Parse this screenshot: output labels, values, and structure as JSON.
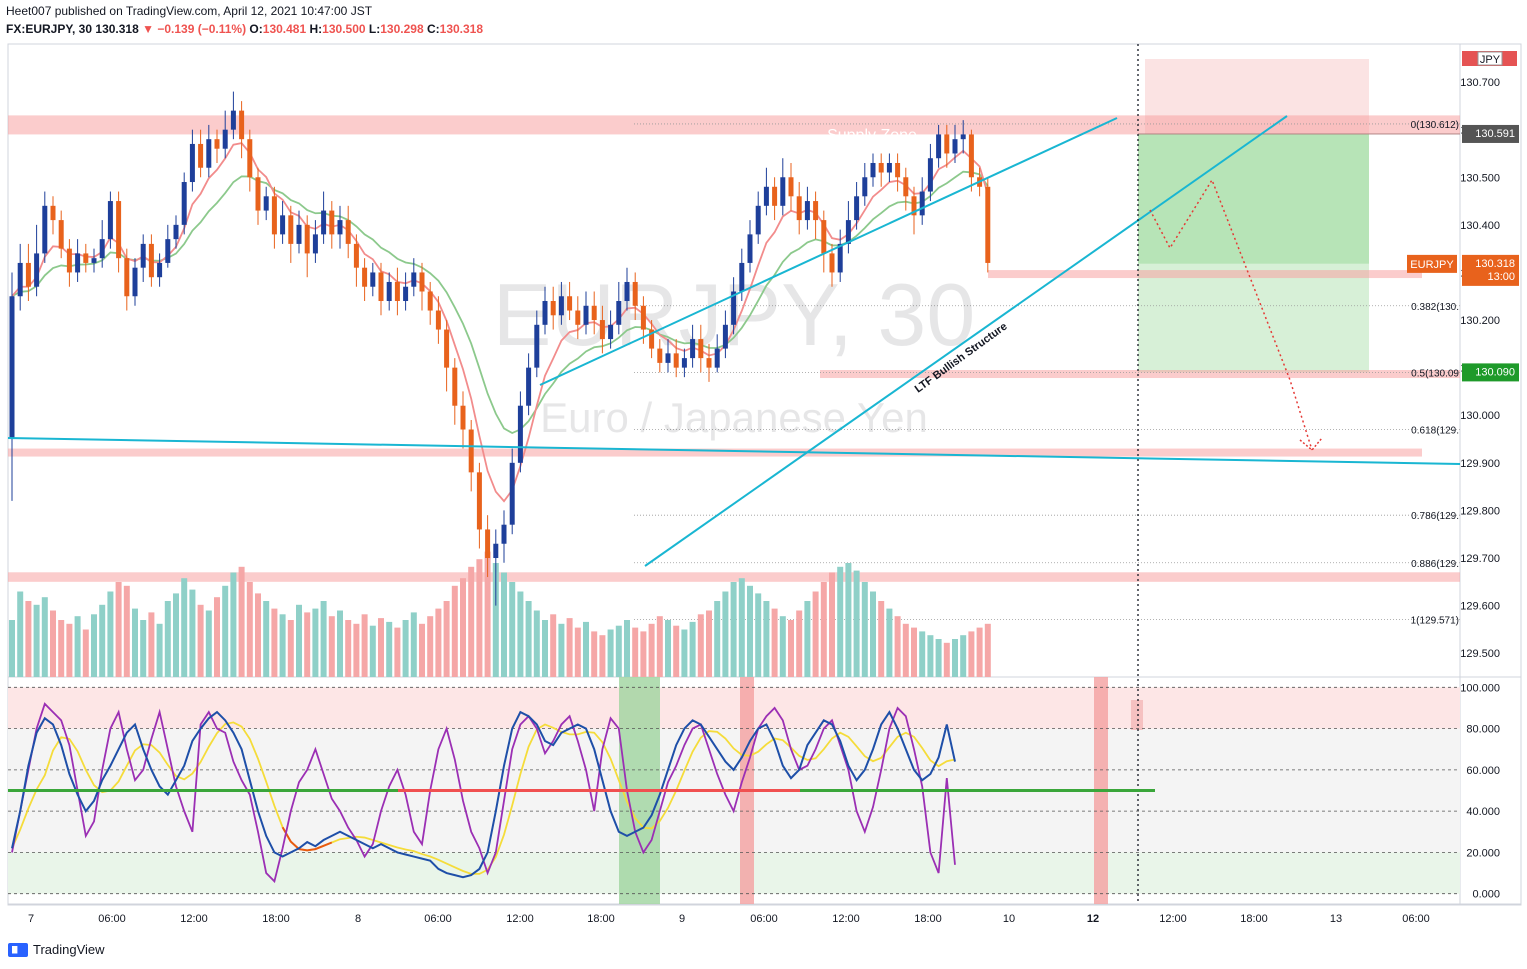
{
  "header": {
    "published_line": "Heet007 published on TradingView.com, April 12, 2021 10:47:00 JST",
    "symbol": "FX:EURJPY, 30",
    "last": "130.318",
    "change": "▼ −0.139 (−0.11%)",
    "o_label": "O:",
    "o": "130.481",
    "h_label": "H:",
    "h": "130.500",
    "l_label": "L:",
    "l": "130.298",
    "c_label": "C:",
    "c": "130.318"
  },
  "watermark": {
    "symbol": "EURJPY, 30",
    "name": "Euro / Japanese Yen"
  },
  "footer": {
    "brand": "TradingView"
  },
  "colors": {
    "up": "#1e3f9a",
    "down": "#e8621c",
    "trend": "#19b6d2",
    "zone": "#f7a3a3",
    "fast_ma": "#f28c8c",
    "slow_ma": "#8cc98c",
    "stoch_k": "#1e4fa8",
    "stoch_d": "#9b2fb4",
    "yellow": "#f5dc3a",
    "orange": "#e85a10",
    "green_line": "#3aa63a",
    "red_line": "#f05050"
  },
  "chart_data": {
    "type": "candlestick",
    "symbol": "FX:EURJPY",
    "timeframe": "30",
    "price_axis": {
      "min": 129.45,
      "max": 130.78,
      "ticks": [
        "130.700",
        "130.600",
        "130.500",
        "130.400",
        "130.300",
        "130.200",
        "130.100",
        "130.000",
        "129.900",
        "129.800",
        "129.700",
        "129.600",
        "129.500"
      ]
    },
    "time_axis": [
      "7",
      "06:00",
      "12:00",
      "18:00",
      "8",
      "06:00",
      "12:00",
      "18:00",
      "9",
      "06:00",
      "12:00",
      "18:00",
      "10",
      "12",
      "12:00",
      "18:00",
      "13",
      "06:00"
    ],
    "bold_time_labels": [
      "12"
    ],
    "price_labels": {
      "current": {
        "name": "EURJPY",
        "price": "130.318",
        "countdown": "13:00"
      },
      "entry": "130.591",
      "target": "130.090",
      "top_clip": "JPY"
    },
    "fibonacci": [
      {
        "label": "0(130.612)",
        "price": 130.612
      },
      {
        "label": "0.382(130.",
        "price": 130.23
      },
      {
        "label": "0.5(130.09",
        "price": 130.09
      },
      {
        "label": "0.618(129.",
        "price": 129.97
      },
      {
        "label": "0.786(129.",
        "price": 129.79
      },
      {
        "label": "0.886(129.",
        "price": 129.69
      },
      {
        "label": "1(129.571)",
        "price": 129.571
      }
    ],
    "zones": [
      {
        "label": "Supply Zone",
        "from": 130.59,
        "to": 130.63
      },
      {
        "label": "",
        "from": 130.29,
        "to": 130.305
      },
      {
        "label": "",
        "from": 130.08,
        "to": 130.095
      },
      {
        "label": "",
        "from": 129.915,
        "to": 129.93
      },
      {
        "label": "",
        "from": 129.65,
        "to": 129.67
      }
    ],
    "annotations": [
      "Supply Zone",
      "LTF Bullish Structure"
    ],
    "stoch_axis": {
      "min": -5,
      "max": 105,
      "ticks": [
        "100.000",
        "80.000",
        "60.000",
        "40.000",
        "20.000",
        "0.000"
      ]
    },
    "candles": [
      [
        129.95,
        130.25,
        130.3,
        129.82
      ],
      [
        130.25,
        130.32,
        130.36,
        130.22
      ],
      [
        130.32,
        130.27,
        130.36,
        130.24
      ],
      [
        130.27,
        130.34,
        130.4,
        130.25
      ],
      [
        130.34,
        130.44,
        130.47,
        130.32
      ],
      [
        130.44,
        130.41,
        130.46,
        130.38
      ],
      [
        130.41,
        130.35,
        130.43,
        130.33
      ],
      [
        130.35,
        130.3,
        130.37,
        130.27
      ],
      [
        130.3,
        130.34,
        130.37,
        130.28
      ],
      [
        130.34,
        130.32,
        130.36,
        130.3
      ],
      [
        130.32,
        130.33,
        130.35,
        130.3
      ],
      [
        130.33,
        130.37,
        130.41,
        130.31
      ],
      [
        130.37,
        130.45,
        130.47,
        130.35
      ],
      [
        130.45,
        130.33,
        130.47,
        130.3
      ],
      [
        130.33,
        130.25,
        130.35,
        130.22
      ],
      [
        130.25,
        130.31,
        130.33,
        130.23
      ],
      [
        130.31,
        130.36,
        130.38,
        130.28
      ],
      [
        130.36,
        130.29,
        130.38,
        130.27
      ],
      [
        130.29,
        130.32,
        130.34,
        130.27
      ],
      [
        130.32,
        130.37,
        130.4,
        130.31
      ],
      [
        130.37,
        130.4,
        130.42,
        130.35
      ],
      [
        130.4,
        130.49,
        130.51,
        130.38
      ],
      [
        130.49,
        130.57,
        130.6,
        130.47
      ],
      [
        130.57,
        130.52,
        130.6,
        130.5
      ],
      [
        130.52,
        130.58,
        130.61,
        130.5
      ],
      [
        130.58,
        130.56,
        130.6,
        130.53
      ],
      [
        130.56,
        130.6,
        130.64,
        130.54
      ],
      [
        130.6,
        130.64,
        130.68,
        130.58
      ],
      [
        130.64,
        130.58,
        130.66,
        130.54
      ],
      [
        130.58,
        130.5,
        130.6,
        130.47
      ],
      [
        130.5,
        130.43,
        130.52,
        130.4
      ],
      [
        130.43,
        130.46,
        130.48,
        130.41
      ],
      [
        130.46,
        130.38,
        130.48,
        130.35
      ],
      [
        130.38,
        130.42,
        130.45,
        130.36
      ],
      [
        130.42,
        130.36,
        130.44,
        130.32
      ],
      [
        130.36,
        130.4,
        130.43,
        130.34
      ],
      [
        130.4,
        130.34,
        130.42,
        130.29
      ],
      [
        130.34,
        130.38,
        130.41,
        130.32
      ],
      [
        130.38,
        130.43,
        130.47,
        130.36
      ],
      [
        130.43,
        130.38,
        130.45,
        130.35
      ],
      [
        130.38,
        130.41,
        130.44,
        130.35
      ],
      [
        130.41,
        130.36,
        130.44,
        130.33
      ],
      [
        130.36,
        130.31,
        130.38,
        130.27
      ],
      [
        130.31,
        130.27,
        130.33,
        130.24
      ],
      [
        130.27,
        130.3,
        130.32,
        130.25
      ],
      [
        130.3,
        130.24,
        130.32,
        130.21
      ],
      [
        130.24,
        130.28,
        130.3,
        130.22
      ],
      [
        130.28,
        130.24,
        130.31,
        130.21
      ],
      [
        130.24,
        130.27,
        130.3,
        130.22
      ],
      [
        130.27,
        130.3,
        130.33,
        130.25
      ],
      [
        130.3,
        130.26,
        130.32,
        130.22
      ],
      [
        130.26,
        130.22,
        130.28,
        130.19
      ],
      [
        130.22,
        130.18,
        130.25,
        130.15
      ],
      [
        130.18,
        130.1,
        130.2,
        130.05
      ],
      [
        130.1,
        130.02,
        130.12,
        129.98
      ],
      [
        130.02,
        129.97,
        130.05,
        129.93
      ],
      [
        129.97,
        129.88,
        129.99,
        129.84
      ],
      [
        129.88,
        129.76,
        129.9,
        129.72
      ],
      [
        129.76,
        129.7,
        129.79,
        129.66
      ],
      [
        129.7,
        129.73,
        129.76,
        129.6
      ],
      [
        129.73,
        129.77,
        129.8,
        129.69
      ],
      [
        129.77,
        129.9,
        129.93,
        129.75
      ],
      [
        129.9,
        130.02,
        130.05,
        129.88
      ],
      [
        130.02,
        130.1,
        130.13,
        130.0
      ],
      [
        130.1,
        130.19,
        130.22,
        130.08
      ],
      [
        130.19,
        130.24,
        130.27,
        130.17
      ],
      [
        130.24,
        130.21,
        130.27,
        130.18
      ],
      [
        130.21,
        130.25,
        130.28,
        130.19
      ],
      [
        130.25,
        130.22,
        130.28,
        130.2
      ],
      [
        130.22,
        130.19,
        130.25,
        130.16
      ],
      [
        130.19,
        130.23,
        130.26,
        130.17
      ],
      [
        130.23,
        130.2,
        130.26,
        130.17
      ],
      [
        130.2,
        130.16,
        130.23,
        130.13
      ],
      [
        130.16,
        130.19,
        130.22,
        130.14
      ],
      [
        130.19,
        130.24,
        130.28,
        130.17
      ],
      [
        130.24,
        130.28,
        130.31,
        130.22
      ],
      [
        130.28,
        130.23,
        130.3,
        130.2
      ],
      [
        130.23,
        130.18,
        130.25,
        130.15
      ],
      [
        130.18,
        130.14,
        130.2,
        130.12
      ],
      [
        130.14,
        130.11,
        130.16,
        130.09
      ],
      [
        130.11,
        130.13,
        130.16,
        130.09
      ],
      [
        130.13,
        130.1,
        130.16,
        130.08
      ],
      [
        130.1,
        130.12,
        130.14,
        130.08
      ],
      [
        130.12,
        130.16,
        130.19,
        130.1
      ],
      [
        130.16,
        130.12,
        130.19,
        130.09
      ],
      [
        130.12,
        130.1,
        130.15,
        130.07
      ],
      [
        130.1,
        130.14,
        130.17,
        130.09
      ],
      [
        130.14,
        130.19,
        130.22,
        130.12
      ],
      [
        130.19,
        130.26,
        130.29,
        130.17
      ],
      [
        130.26,
        130.32,
        130.35,
        130.24
      ],
      [
        130.32,
        130.38,
        130.41,
        130.3
      ],
      [
        130.38,
        130.44,
        130.47,
        130.36
      ],
      [
        130.44,
        130.48,
        130.52,
        130.42
      ],
      [
        130.48,
        130.44,
        130.5,
        130.41
      ],
      [
        130.44,
        130.5,
        130.54,
        130.42
      ],
      [
        130.5,
        130.46,
        130.53,
        130.43
      ],
      [
        130.46,
        130.41,
        130.49,
        130.38
      ],
      [
        130.41,
        130.45,
        130.48,
        130.39
      ],
      [
        130.45,
        130.41,
        130.47,
        130.37
      ],
      [
        130.41,
        130.34,
        130.43,
        130.3
      ],
      [
        130.34,
        130.3,
        130.36,
        130.27
      ],
      [
        130.3,
        130.36,
        130.39,
        130.28
      ],
      [
        130.36,
        130.41,
        130.45,
        130.34
      ],
      [
        130.41,
        130.46,
        130.49,
        130.39
      ],
      [
        130.46,
        130.5,
        130.53,
        130.44
      ],
      [
        130.5,
        130.53,
        130.55,
        130.48
      ],
      [
        130.53,
        130.51,
        130.55,
        130.48
      ],
      [
        130.51,
        130.53,
        130.55,
        130.49
      ],
      [
        130.53,
        130.5,
        130.55,
        130.47
      ],
      [
        130.5,
        130.46,
        130.52,
        130.43
      ],
      [
        130.46,
        130.42,
        130.48,
        130.38
      ],
      [
        130.42,
        130.47,
        130.5,
        130.4
      ],
      [
        130.47,
        130.54,
        130.57,
        130.45
      ],
      [
        130.54,
        130.59,
        130.61,
        130.52
      ],
      [
        130.59,
        130.55,
        130.61,
        130.52
      ],
      [
        130.55,
        130.58,
        130.61,
        130.53
      ],
      [
        130.58,
        130.59,
        130.62,
        130.55
      ],
      [
        130.59,
        130.5,
        130.6,
        130.47
      ],
      [
        130.5,
        130.48,
        130.52,
        130.46
      ],
      [
        130.48,
        130.32,
        130.5,
        130.3
      ]
    ]
  }
}
